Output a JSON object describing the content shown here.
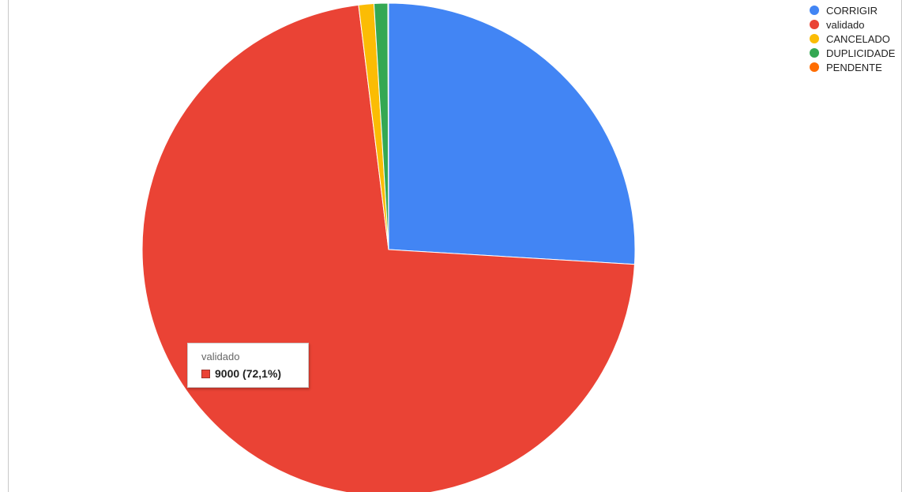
{
  "chart_data": {
    "type": "pie",
    "title": "",
    "legend_position": "top-right",
    "slices": [
      {
        "label": "CORRIGIR",
        "value": 3240,
        "color": "#4285f4"
      },
      {
        "label": "validado",
        "value": 9000,
        "color": "#ea4335"
      },
      {
        "label": "CANCELADO",
        "value": 125,
        "color": "#fbbc04"
      },
      {
        "label": "DUPLICIDADE",
        "value": 112,
        "color": "#34a853"
      },
      {
        "label": "PENDENTE",
        "value": 6,
        "color": "#ff6d01"
      }
    ],
    "tooltip": {
      "label": "validado",
      "value_text": "9000 (72,1%)",
      "color": "#ea4335"
    }
  }
}
